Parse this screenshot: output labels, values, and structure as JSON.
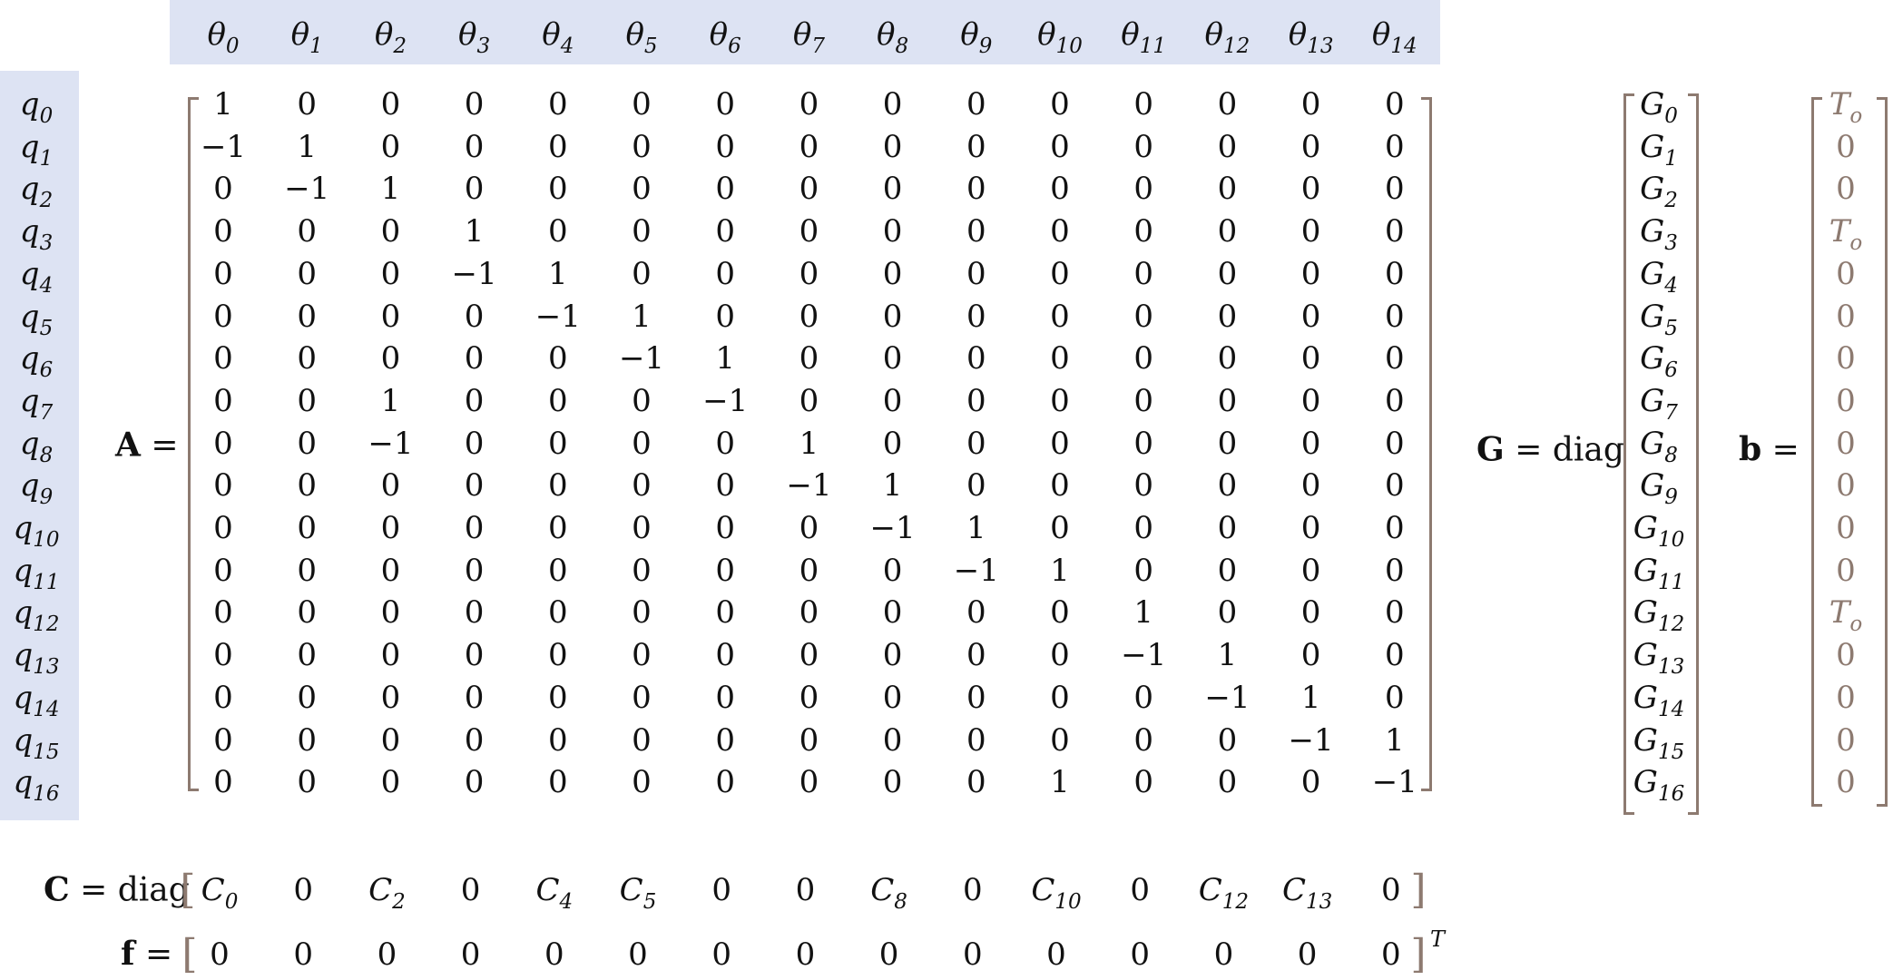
{
  "theta_headers": [
    "θ0",
    "θ1",
    "θ2",
    "θ3",
    "θ4",
    "θ5",
    "θ6",
    "θ7",
    "θ8",
    "θ9",
    "θ10",
    "θ11",
    "θ12",
    "θ13",
    "θ14"
  ],
  "q_labels": [
    "q0",
    "q1",
    "q2",
    "q3",
    "q4",
    "q5",
    "q6",
    "q7",
    "q8",
    "q9",
    "q10",
    "q11",
    "q12",
    "q13",
    "q14",
    "q15",
    "q16"
  ],
  "A": {
    "name": "A",
    "eq": "=",
    "rows": [
      [
        "1",
        "0",
        "0",
        "0",
        "0",
        "0",
        "0",
        "0",
        "0",
        "0",
        "0",
        "0",
        "0",
        "0",
        "0"
      ],
      [
        "−1",
        "1",
        "0",
        "0",
        "0",
        "0",
        "0",
        "0",
        "0",
        "0",
        "0",
        "0",
        "0",
        "0",
        "0"
      ],
      [
        "0",
        "−1",
        "1",
        "0",
        "0",
        "0",
        "0",
        "0",
        "0",
        "0",
        "0",
        "0",
        "0",
        "0",
        "0"
      ],
      [
        "0",
        "0",
        "0",
        "1",
        "0",
        "0",
        "0",
        "0",
        "0",
        "0",
        "0",
        "0",
        "0",
        "0",
        "0"
      ],
      [
        "0",
        "0",
        "0",
        "−1",
        "1",
        "0",
        "0",
        "0",
        "0",
        "0",
        "0",
        "0",
        "0",
        "0",
        "0"
      ],
      [
        "0",
        "0",
        "0",
        "0",
        "−1",
        "1",
        "0",
        "0",
        "0",
        "0",
        "0",
        "0",
        "0",
        "0",
        "0"
      ],
      [
        "0",
        "0",
        "0",
        "0",
        "0",
        "−1",
        "1",
        "0",
        "0",
        "0",
        "0",
        "0",
        "0",
        "0",
        "0"
      ],
      [
        "0",
        "0",
        "1",
        "0",
        "0",
        "0",
        "−1",
        "0",
        "0",
        "0",
        "0",
        "0",
        "0",
        "0",
        "0"
      ],
      [
        "0",
        "0",
        "−1",
        "0",
        "0",
        "0",
        "0",
        "1",
        "0",
        "0",
        "0",
        "0",
        "0",
        "0",
        "0"
      ],
      [
        "0",
        "0",
        "0",
        "0",
        "0",
        "0",
        "0",
        "−1",
        "1",
        "0",
        "0",
        "0",
        "0",
        "0",
        "0"
      ],
      [
        "0",
        "0",
        "0",
        "0",
        "0",
        "0",
        "0",
        "0",
        "−1",
        "1",
        "0",
        "0",
        "0",
        "0",
        "0"
      ],
      [
        "0",
        "0",
        "0",
        "0",
        "0",
        "0",
        "0",
        "0",
        "0",
        "−1",
        "1",
        "0",
        "0",
        "0",
        "0"
      ],
      [
        "0",
        "0",
        "0",
        "0",
        "0",
        "0",
        "0",
        "0",
        "0",
        "0",
        "0",
        "1",
        "0",
        "0",
        "0"
      ],
      [
        "0",
        "0",
        "0",
        "0",
        "0",
        "0",
        "0",
        "0",
        "0",
        "0",
        "0",
        "−1",
        "1",
        "0",
        "0"
      ],
      [
        "0",
        "0",
        "0",
        "0",
        "0",
        "0",
        "0",
        "0",
        "0",
        "0",
        "0",
        "0",
        "−1",
        "1",
        "0"
      ],
      [
        "0",
        "0",
        "0",
        "0",
        "0",
        "0",
        "0",
        "0",
        "0",
        "0",
        "0",
        "0",
        "0",
        "−1",
        "1"
      ],
      [
        "0",
        "0",
        "0",
        "0",
        "0",
        "0",
        "0",
        "0",
        "0",
        "0",
        "1",
        "0",
        "0",
        "0",
        "−1"
      ]
    ]
  },
  "G": {
    "name": "G",
    "eq": "=",
    "func": "diag",
    "entries": [
      "G0",
      "G1",
      "G2",
      "G3",
      "G4",
      "G5",
      "G6",
      "G7",
      "G8",
      "G9",
      "G10",
      "G11",
      "G12",
      "G13",
      "G14",
      "G15",
      "G16"
    ]
  },
  "b": {
    "name": "b",
    "eq": "=",
    "entries": [
      "To",
      "0",
      "0",
      "To",
      "0",
      "0",
      "0",
      "0",
      "0",
      "0",
      "0",
      "0",
      "To",
      "0",
      "0",
      "0",
      "0"
    ]
  },
  "C": {
    "name": "C",
    "eq": "=",
    "func": "diag",
    "open": "[",
    "close": "]",
    "entries": [
      "C0",
      "0",
      "C2",
      "0",
      "C4",
      "C5",
      "0",
      "0",
      "C8",
      "0",
      "C10",
      "0",
      "C12",
      "C13",
      "0"
    ]
  },
  "f": {
    "name": "f",
    "eq": "=",
    "open": "[",
    "close": "]",
    "transpose": "T",
    "entries": [
      "0",
      "0",
      "0",
      "0",
      "0",
      "0",
      "0",
      "0",
      "0",
      "0",
      "0",
      "0",
      "0",
      "0",
      "0"
    ]
  },
  "colors": {
    "header_band": "#dde3f3",
    "bracket": "#8d7a70",
    "text": "#111111"
  }
}
